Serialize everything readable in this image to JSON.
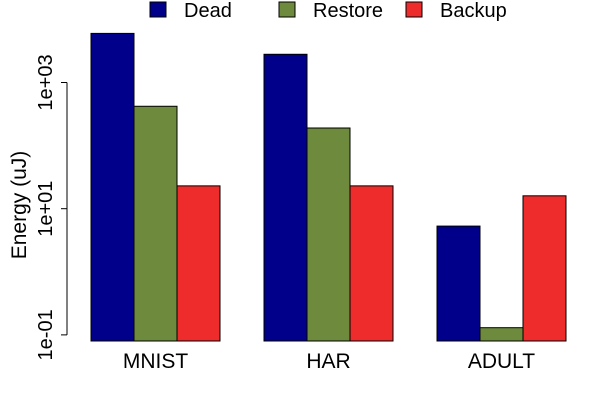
{
  "chart_data": {
    "type": "bar",
    "categories": [
      "MNIST",
      "HAR",
      "ADULT"
    ],
    "series": [
      {
        "name": "Dead",
        "color": "#00008B",
        "values": [
          6000,
          2800,
          5.3
        ]
      },
      {
        "name": "Restore",
        "color": "#6E8B3D",
        "values": [
          420,
          190,
          0.13
        ]
      },
      {
        "name": "Backup",
        "color": "#EE2C2C",
        "values": [
          23,
          23,
          16
        ]
      }
    ],
    "title": "",
    "xlabel": "",
    "ylabel": "Energy (uJ)",
    "yscale": "log",
    "ylim": [
      0.08,
      10000
    ],
    "yticks": [
      {
        "value": 0.1,
        "label": "1e-01"
      },
      {
        "value": 10,
        "label": "1e+01"
      },
      {
        "value": 1000,
        "label": "1e+03"
      }
    ],
    "grid": false,
    "legend": {
      "position": "top",
      "entries": [
        "Dead",
        "Restore",
        "Backup"
      ]
    }
  }
}
